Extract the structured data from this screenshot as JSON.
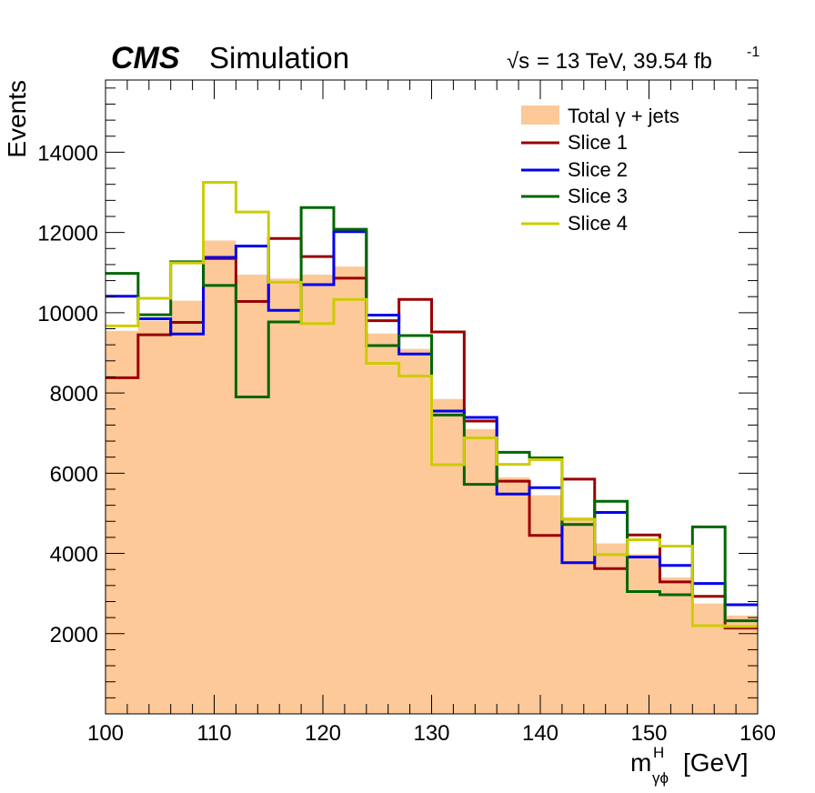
{
  "chart_data": {
    "type": "histogram",
    "header": {
      "cms_label": "CMS",
      "simulation_label": "Simulation",
      "sqrt_label": "√s",
      "energy_label": "= 13 TeV, 39.54 fb",
      "lumi_exponent": "-1"
    },
    "ylabel": "Events",
    "xlabel": {
      "base": "m",
      "superscript": "H",
      "subscript": "γϕ",
      "unit": "[GeV]"
    },
    "xlim": [
      100,
      160
    ],
    "ylim": [
      0,
      15800
    ],
    "x_ticks": [
      "100",
      "110",
      "120",
      "130",
      "140",
      "150",
      "160"
    ],
    "y_ticks": [
      "2000",
      "4000",
      "6000",
      "8000",
      "10000",
      "12000",
      "14000"
    ],
    "bin_edges": [
      100,
      103,
      106,
      109,
      112,
      115,
      118,
      121,
      124,
      127,
      130,
      133,
      136,
      139,
      142,
      145,
      148,
      151,
      154,
      157,
      160
    ],
    "legend": {
      "position": "top-right",
      "total_label": "Total γ + jets",
      "slice1_label": "Slice 1",
      "slice2_label": "Slice 2",
      "slice3_label": "Slice 3",
      "slice4_label": "Slice 4"
    },
    "total": {
      "name": "Total γ + jets",
      "color": "#fdc999",
      "values": [
        9550,
        9800,
        10300,
        11800,
        10950,
        10850,
        10950,
        11150,
        9480,
        9100,
        7850,
        7100,
        5900,
        5450,
        4900,
        4250,
        3980,
        3400,
        2750,
        2450
      ]
    },
    "series": [
      {
        "name": "Slice 1",
        "color": "#990000",
        "values": [
          8380,
          9450,
          9760,
          11350,
          10280,
          11850,
          11400,
          10860,
          9800,
          10330,
          9520,
          7300,
          5800,
          4450,
          5850,
          3620,
          4460,
          3290,
          2930,
          2140
        ]
      },
      {
        "name": "Slice 2",
        "color": "#0000ee",
        "values": [
          10410,
          9850,
          9470,
          11380,
          11660,
          10060,
          10700,
          12020,
          9940,
          8970,
          7550,
          7390,
          5480,
          5640,
          3770,
          5020,
          3910,
          3700,
          3250,
          2720
        ]
      },
      {
        "name": "Slice 3",
        "color": "#006600",
        "values": [
          10980,
          9950,
          11270,
          10680,
          7900,
          9770,
          12620,
          12080,
          9180,
          9430,
          7450,
          5720,
          6520,
          6380,
          4720,
          5300,
          3050,
          2970,
          4660,
          2320
        ]
      },
      {
        "name": "Slice 4",
        "color": "#cccc00",
        "values": [
          9670,
          10360,
          11240,
          13250,
          12510,
          10760,
          9730,
          10330,
          8740,
          8420,
          6210,
          6880,
          6220,
          6340,
          4850,
          3970,
          4340,
          4180,
          2200,
          2180
        ]
      }
    ]
  }
}
